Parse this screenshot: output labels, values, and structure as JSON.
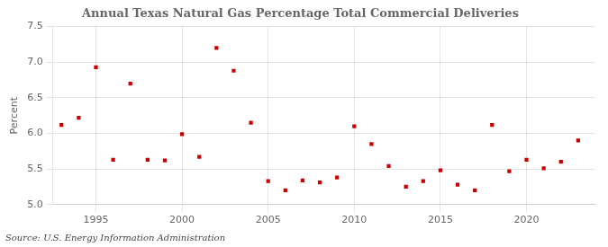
{
  "chart_data": {
    "type": "scatter",
    "title": "Annual Texas Natural Gas Percentage Total Commercial Deliveries",
    "ylabel": "Percent",
    "annotation": "Source: U.S. Energy Information Administration",
    "x": [
      1993,
      1994,
      1995,
      1996,
      1997,
      1998,
      1999,
      2000,
      2001,
      2002,
      2003,
      2004,
      2005,
      2006,
      2007,
      2008,
      2009,
      2010,
      2011,
      2012,
      2013,
      2014,
      2015,
      2016,
      2017,
      2018,
      2019,
      2020,
      2021,
      2022,
      2023
    ],
    "values": [
      6.12,
      6.22,
      6.93,
      5.63,
      6.7,
      5.63,
      5.62,
      5.99,
      5.67,
      7.2,
      6.88,
      6.15,
      5.33,
      5.2,
      5.34,
      5.31,
      5.38,
      6.1,
      5.85,
      5.54,
      5.25,
      5.33,
      5.48,
      5.28,
      5.2,
      6.12,
      5.47,
      5.63,
      5.51,
      5.6,
      5.9
    ],
    "color": "#cc0000",
    "marker": "square",
    "xlim": [
      1992.5,
      2024
    ],
    "xticks": [
      1995,
      2000,
      2005,
      2010,
      2015,
      2020
    ],
    "ylim": [
      5.0,
      7.5
    ],
    "yticks": [
      {
        "value": 5.0,
        "label": "5.0"
      },
      5.5,
      {
        "value": 6.0,
        "label": "6.0"
      },
      6.5,
      {
        "value": 7.0,
        "label": "7.0"
      },
      7.5
    ],
    "grid": true
  }
}
